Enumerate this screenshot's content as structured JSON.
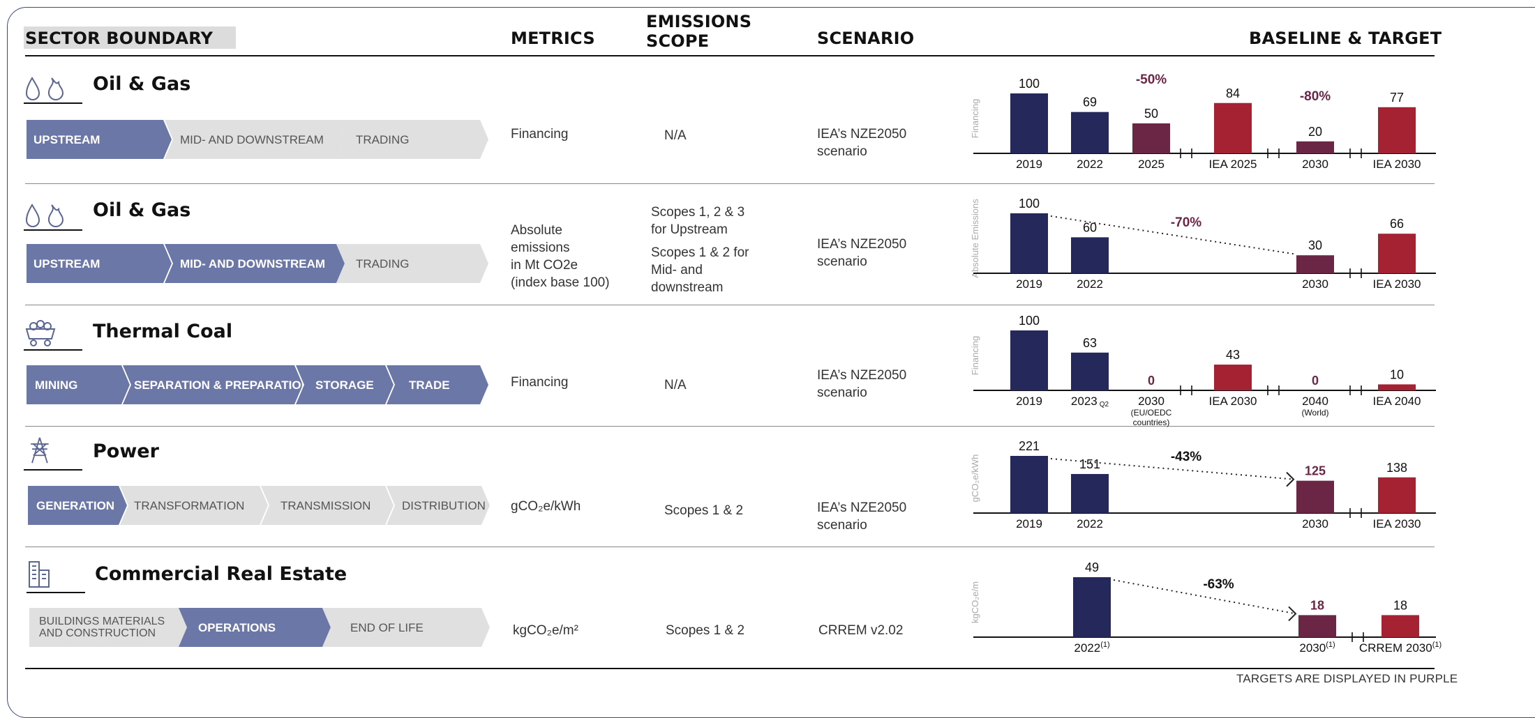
{
  "headers": {
    "sector_boundary": "SECTOR BOUNDARY",
    "metrics": "METRICS",
    "emissions_scope_line1": "EMISSIONS",
    "emissions_scope_line2": "SCOPE",
    "scenario": "SCENARIO",
    "baseline_target": "BASELINE & TARGET"
  },
  "colors": {
    "baseline_bar": "#24285a",
    "target_bar": "#6b2646",
    "benchmark_bar": "#a52232",
    "active_segment": "#6b77a6",
    "inactive_segment": "#e0e0e0",
    "target_text": "#6b2646"
  },
  "rows": [
    {
      "title": "Oil & Gas",
      "icon": "oil-gas-icon",
      "segments": [
        {
          "label": "UPSTREAM",
          "active": true
        },
        {
          "label": "MID- AND DOWNSTREAM",
          "active": false
        },
        {
          "label": "TRADING",
          "active": false
        }
      ],
      "metric": [
        "Financing"
      ],
      "scope": [
        "N/A"
      ],
      "scenario": [
        "IEA’s NZE2050",
        "scenario"
      ]
    },
    {
      "title": "Oil & Gas",
      "icon": "oil-gas-icon",
      "segments": [
        {
          "label": "UPSTREAM",
          "active": true
        },
        {
          "label": "MID- AND DOWNSTREAM",
          "active": true
        },
        {
          "label": "TRADING",
          "active": false
        }
      ],
      "metric": [
        "Absolute",
        "emissions",
        "in Mt CO2e",
        "(index base 100)"
      ],
      "scope": [
        "Scopes 1, 2 & 3",
        "for Upstream",
        "Scopes 1 & 2 for",
        "Mid- and",
        "downstream"
      ],
      "scenario": [
        "IEA’s NZE2050",
        "scenario"
      ]
    },
    {
      "title": "Thermal Coal",
      "icon": "coal-cart-icon",
      "segments": [
        {
          "label": "MINING",
          "active": true
        },
        {
          "label": "SEPARATION & PREPARATION",
          "active": true
        },
        {
          "label": "STORAGE",
          "active": true
        },
        {
          "label": "TRADE",
          "active": true
        }
      ],
      "metric": [
        "Financing"
      ],
      "scope": [
        "N/A"
      ],
      "scenario": [
        "IEA’s NZE2050",
        "scenario"
      ]
    },
    {
      "title": "Power",
      "icon": "power-pylon-icon",
      "segments": [
        {
          "label": "GENERATION",
          "active": true
        },
        {
          "label": "TRANSFORMATION",
          "active": false
        },
        {
          "label": "TRANSMISSION",
          "active": false
        },
        {
          "label": "DISTRIBUTION",
          "active": false
        }
      ],
      "metric": [
        "gCO₂e/kWh"
      ],
      "scope": [
        "Scopes 1 & 2"
      ],
      "scenario": [
        "IEA’s NZE2050",
        "scenario"
      ]
    },
    {
      "title": "Commercial Real Estate",
      "icon": "building-icon",
      "segments": [
        {
          "label": "BUILDINGS MATERIALS\nAND CONSTRUCTION",
          "active": false
        },
        {
          "label": "OPERATIONS",
          "active": true
        },
        {
          "label": "END OF LIFE",
          "active": false
        }
      ],
      "metric": [
        "kgCO₂e/m²"
      ],
      "scope": [
        "Scopes 1 & 2"
      ],
      "scenario": [
        "CRREM v2.02"
      ]
    }
  ],
  "chart_data": [
    {
      "type": "bar",
      "ylabel": "Financing",
      "categories": [
        "2019",
        "2022",
        "2025",
        "IEA 2025",
        "2030",
        "IEA 2030"
      ],
      "values": [
        100,
        69,
        50,
        84,
        20,
        77
      ],
      "roles": [
        "baseline",
        "baseline",
        "target",
        "benchmark",
        "target",
        "benchmark"
      ],
      "annotations": [
        {
          "category": "2025",
          "text": "-50%"
        },
        {
          "category": "2030",
          "text": "-80%"
        }
      ]
    },
    {
      "type": "bar",
      "ylabel": "Absolute Emissions",
      "categories": [
        "2019",
        "2022",
        "2030",
        "IEA 2030"
      ],
      "values": [
        100,
        60,
        30,
        66
      ],
      "roles": [
        "baseline",
        "baseline",
        "target",
        "benchmark"
      ],
      "trend": {
        "from": "2019",
        "to": "2030",
        "text": "-70%"
      }
    },
    {
      "type": "bar",
      "ylabel": "Financing",
      "categories": [
        "2019",
        "2023",
        "2030",
        "IEA 2030",
        "2040",
        "IEA 2040"
      ],
      "category_notes": {
        "2023": "Q2",
        "2030": "(EU/OEDC countries)",
        "2040": "(World)"
      },
      "values": [
        100,
        63,
        0,
        43,
        0,
        10
      ],
      "roles": [
        "baseline",
        "baseline",
        "target",
        "benchmark",
        "target",
        "benchmark"
      ]
    },
    {
      "type": "bar",
      "ylabel": "gCO₂e/kWh",
      "categories": [
        "2019",
        "2022",
        "2030",
        "IEA 2030"
      ],
      "values": [
        221,
        151,
        125,
        138
      ],
      "roles": [
        "baseline",
        "baseline",
        "target",
        "benchmark"
      ],
      "trend": {
        "from": "2019",
        "to": "2030",
        "text": "-43%"
      }
    },
    {
      "type": "bar",
      "ylabel": "kgCO₂e/m",
      "categories": [
        "2022(1)",
        "2030(1)",
        "CRREM 2030(1)"
      ],
      "values": [
        49,
        18,
        18
      ],
      "roles": [
        "baseline",
        "target",
        "benchmark"
      ],
      "trend": {
        "from": "2022(1)",
        "to": "2030(1)",
        "text": "-63%"
      }
    }
  ],
  "footer": "TARGETS ARE DISPLAYED IN PURPLE"
}
